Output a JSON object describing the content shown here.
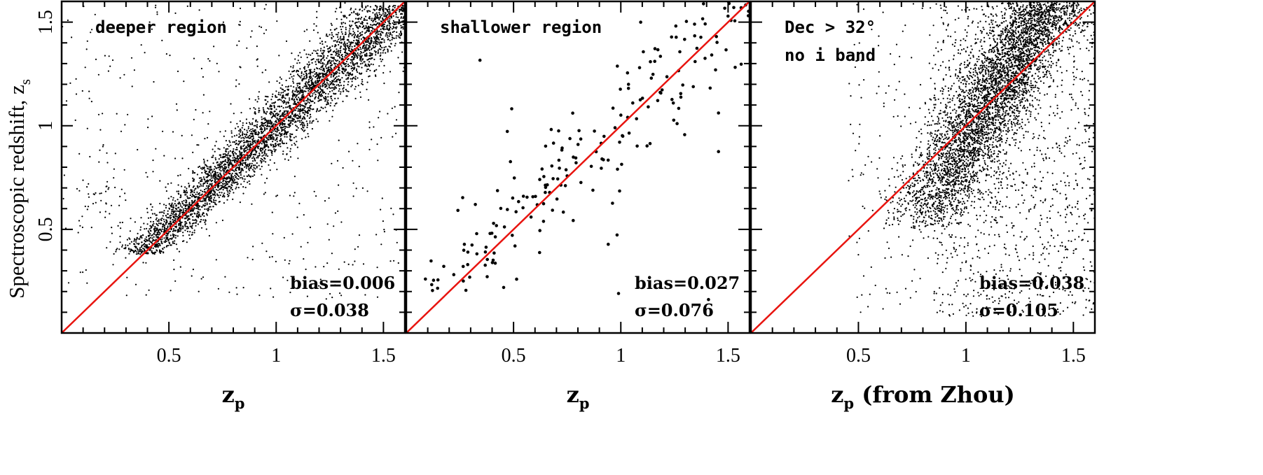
{
  "chart_data": [
    {
      "type": "scatter",
      "panel_label": "deeper region",
      "xlabel": "z",
      "xlabel_sub": "p",
      "xlabel_suffix": "",
      "ylabel": "Spectroscopic redshift, z",
      "ylabel_sub": "s",
      "xlim": [
        0,
        1.6
      ],
      "ylim": [
        0,
        1.6
      ],
      "xticks": [
        "0.5",
        "1",
        "1.5"
      ],
      "yticks": [
        "0.5",
        "1",
        "1.5"
      ],
      "reference_line": "z_s = z_p",
      "bias_label": "bias=0.006",
      "sigma_label": "σ=0.038",
      "bias": 0.006,
      "sigma": 0.038,
      "point_density": "dense",
      "series": [
        {
          "center_x": [
            0.45,
            0.6,
            0.75,
            0.9,
            1.05,
            1.2,
            1.35
          ],
          "center_y": [
            0.46,
            0.61,
            0.76,
            0.91,
            1.05,
            1.21,
            1.35
          ],
          "note": "points clustered tightly along the one-to-one line"
        }
      ]
    },
    {
      "type": "scatter",
      "panel_label": "shallower region",
      "xlabel": "z",
      "xlabel_sub": "p",
      "xlabel_suffix": "",
      "xlim": [
        0,
        1.6
      ],
      "ylim": [
        0,
        1.6
      ],
      "xticks": [
        "0.5",
        "1",
        "1.5"
      ],
      "reference_line": "z_s = z_p",
      "bias_label": "bias=0.027",
      "sigma_label": "σ=0.076",
      "bias": 0.027,
      "sigma": 0.076,
      "point_density": "sparse",
      "series": [
        {
          "center_x": [
            0.3,
            0.5,
            0.7,
            0.9,
            1.1,
            1.3,
            1.45
          ],
          "center_y": [
            0.33,
            0.52,
            0.74,
            0.92,
            1.13,
            1.33,
            1.5
          ],
          "note": "sparse points scattered around the one-to-one line"
        }
      ]
    },
    {
      "type": "scatter",
      "panel_label": "Dec > 32°",
      "panel_label_line2": "no i band",
      "xlabel": "z",
      "xlabel_sub": "p",
      "xlabel_suffix": " (from Zhou)",
      "xlim": [
        0,
        1.6
      ],
      "ylim": [
        0,
        1.6
      ],
      "xticks": [
        "0.5",
        "1",
        "1.5"
      ],
      "reference_line": "z_s = z_p",
      "bias_label": "bias=0.038",
      "sigma_label": "σ=0.105",
      "bias": 0.038,
      "sigma": 0.105,
      "point_density": "dense",
      "series": [
        {
          "center_x": [
            1.0,
            1.1,
            1.15,
            1.2,
            1.35,
            1.5
          ],
          "center_y": [
            0.9,
            1.0,
            1.05,
            1.2,
            1.35,
            1.5
          ],
          "note": "points concentrated at z_p ≈ 1.0–1.2 with a broad vertical spread"
        }
      ]
    }
  ]
}
